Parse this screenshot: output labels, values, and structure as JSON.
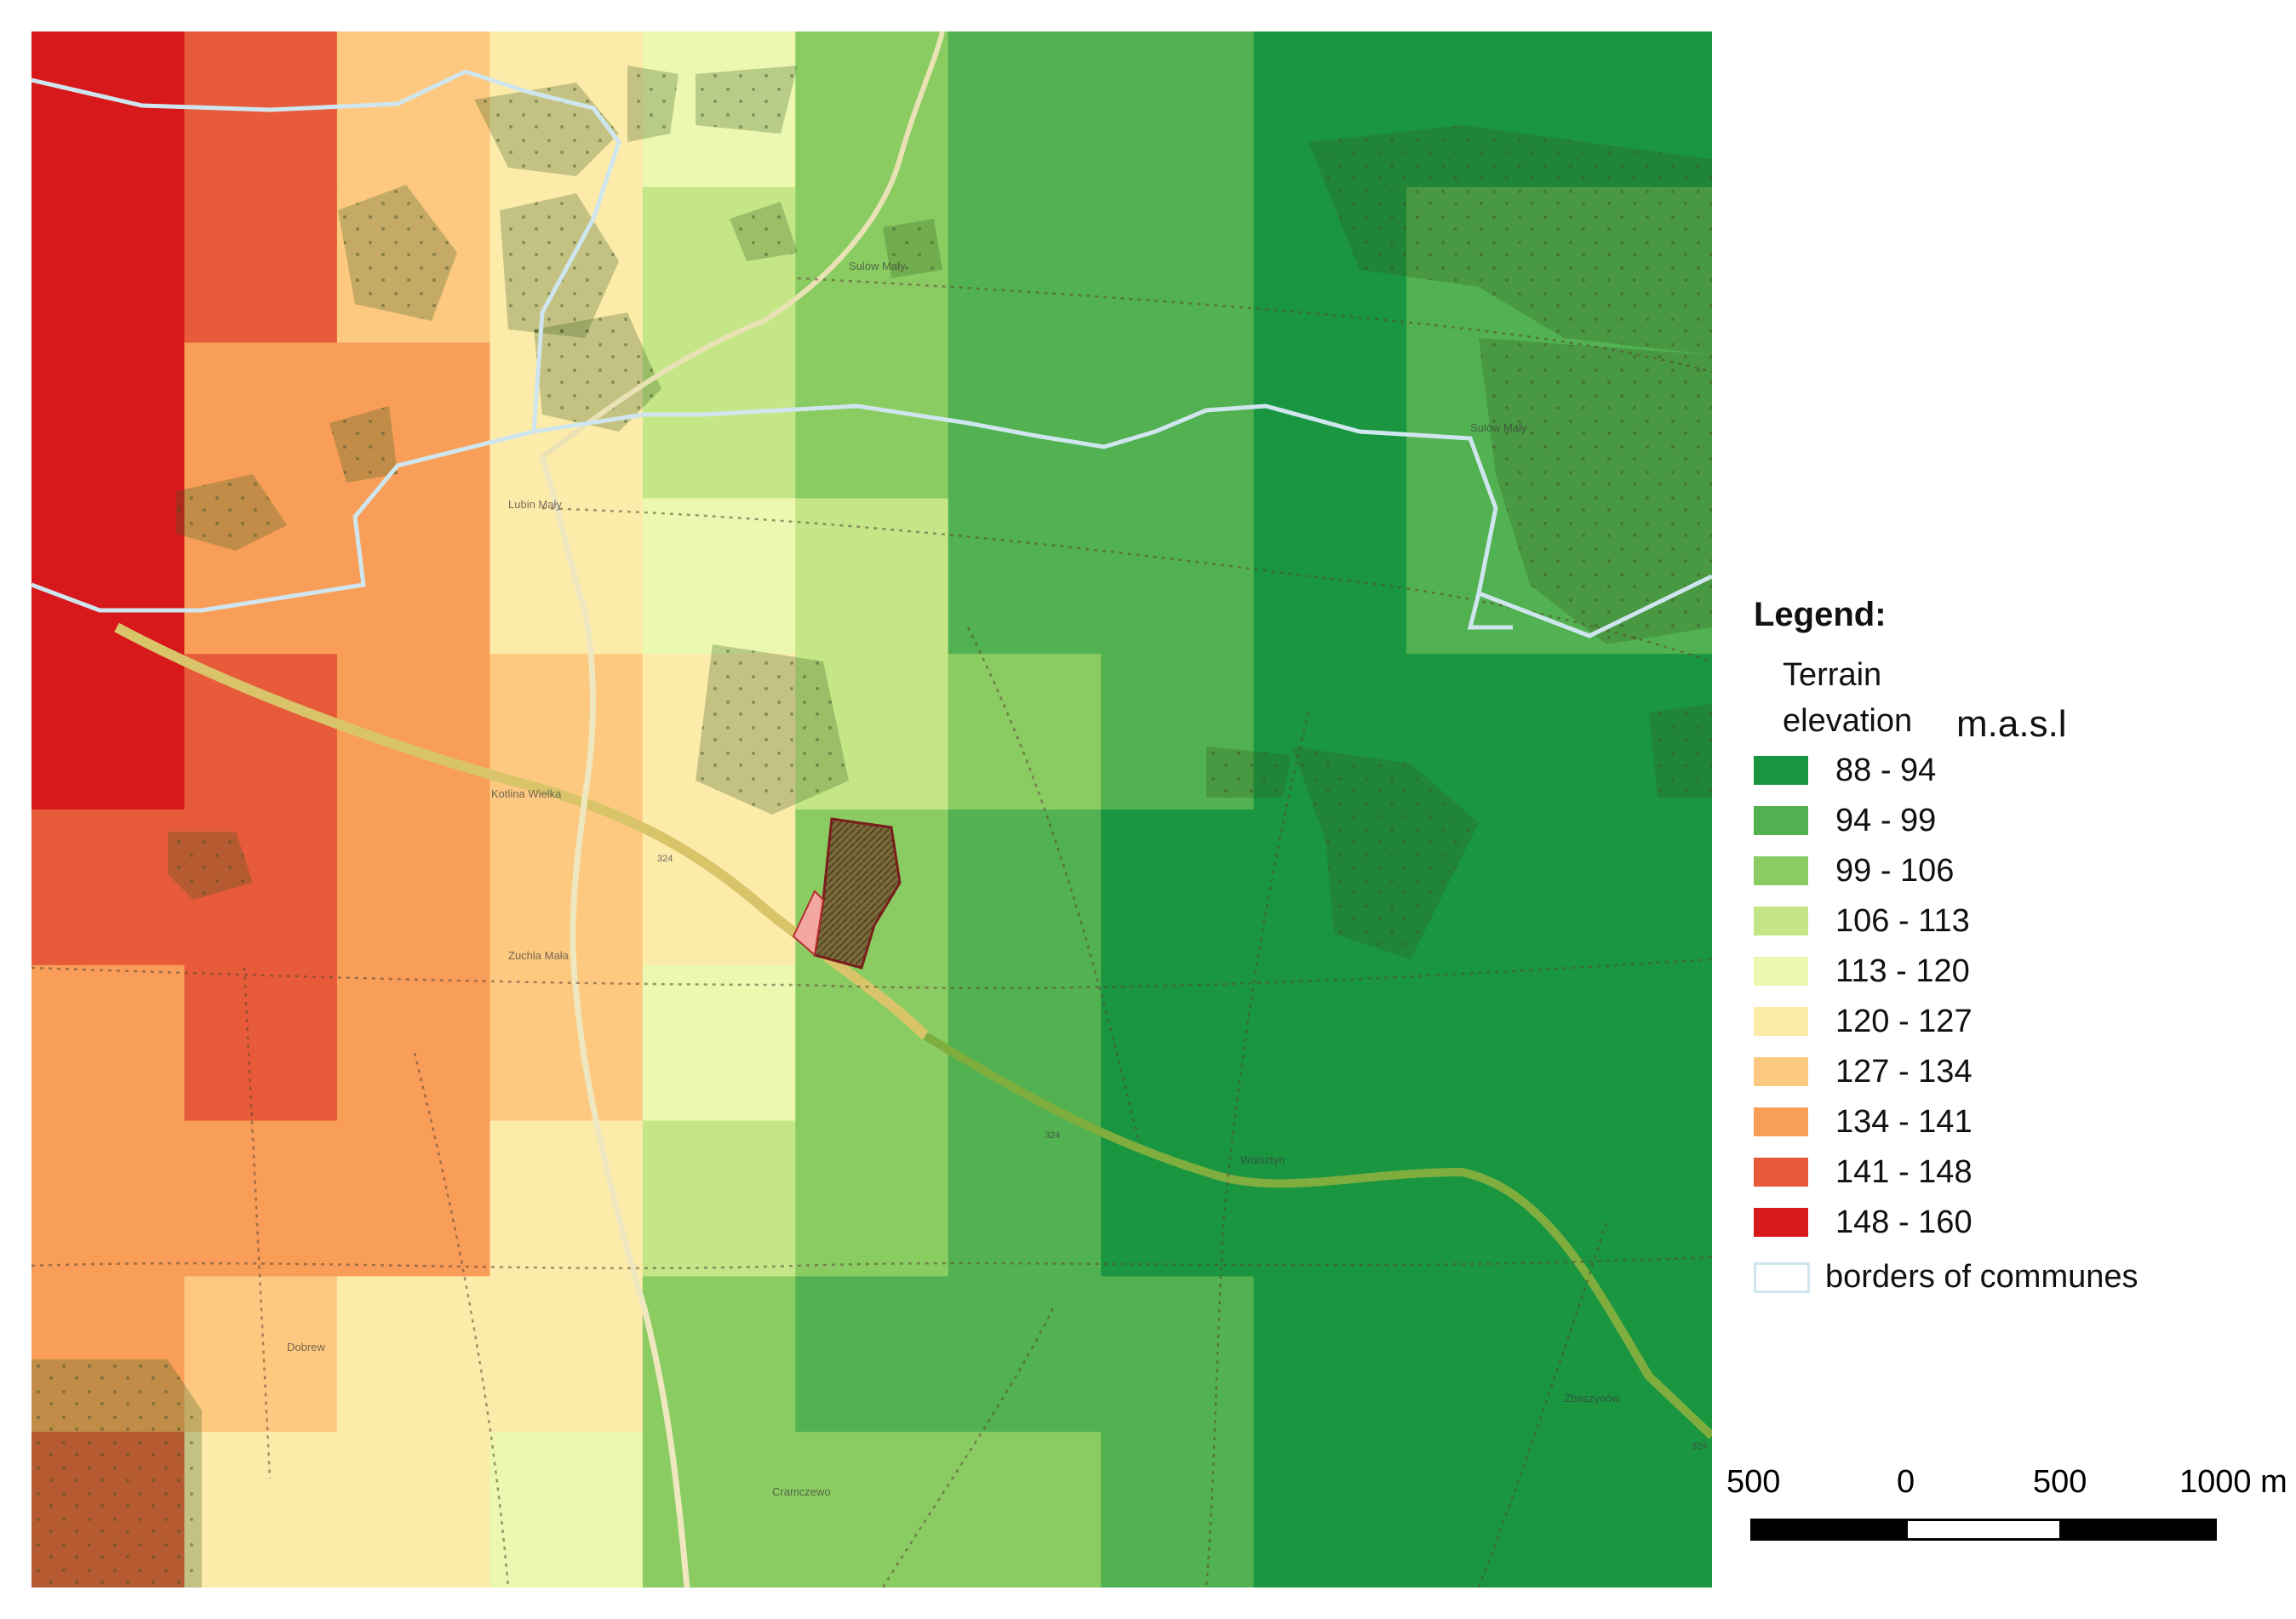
{
  "map": {
    "grid_columns": 11,
    "grid_rows": 10,
    "elevation_grid_class_index": [
      [
        9,
        8,
        6,
        5,
        4,
        2,
        1,
        1,
        0,
        0,
        0
      ],
      [
        9,
        8,
        6,
        5,
        3,
        2,
        1,
        1,
        0,
        1,
        1
      ],
      [
        9,
        7,
        7,
        5,
        3,
        2,
        1,
        1,
        0,
        1,
        1
      ],
      [
        9,
        7,
        7,
        5,
        4,
        3,
        1,
        1,
        0,
        1,
        1
      ],
      [
        9,
        8,
        7,
        6,
        5,
        3,
        2,
        1,
        0,
        0,
        0
      ],
      [
        8,
        8,
        7,
        6,
        5,
        2,
        1,
        0,
        0,
        0,
        0
      ],
      [
        7,
        8,
        7,
        6,
        4,
        2,
        1,
        0,
        0,
        0,
        0
      ],
      [
        7,
        7,
        7,
        5,
        3,
        2,
        1,
        0,
        0,
        0,
        0
      ],
      [
        7,
        6,
        5,
        5,
        2,
        1,
        1,
        1,
        0,
        0,
        0
      ],
      [
        8,
        5,
        5,
        4,
        2,
        2,
        2,
        1,
        0,
        0,
        0
      ]
    ],
    "place_labels": [
      "Kotlina Wielka",
      "Zuchla Mała",
      "Dobrew",
      "Zbaszynów",
      "Wolsztyn",
      "Cramczewo",
      "Sulów Mały",
      "Lubin Mały",
      "Sulów Mały"
    ],
    "road_numbers": [
      "324",
      "324",
      "324"
    ]
  },
  "legend": {
    "title": "Legend:",
    "subtitle": "Terrain elevation",
    "unit": "m.a.s.l",
    "classes": [
      {
        "label": "88 - 94",
        "color": "#1a9641"
      },
      {
        "label": "94 - 99",
        "color": "#52b151"
      },
      {
        "label": "99 - 106",
        "color": "#8acc62"
      },
      {
        "label": "106 - 113",
        "color": "#c4e687"
      },
      {
        "label": "113 - 120",
        "color": "#ecf7b0"
      },
      {
        "label": "120 - 127",
        "color": "#fdebaa"
      },
      {
        "label": "127 - 134",
        "color": "#fdc980"
      },
      {
        "label": "134 - 141",
        "color": "#f99e59"
      },
      {
        "label": "141 - 148",
        "color": "#e85b3a"
      },
      {
        "label": "148 - 160",
        "color": "#d7191c"
      }
    ],
    "border_item": {
      "label": "borders of communes",
      "color": "#cfe6ef"
    }
  },
  "scale_bar": {
    "labels": [
      "500",
      "0",
      "500",
      "1000 m"
    ],
    "unit": "m"
  }
}
